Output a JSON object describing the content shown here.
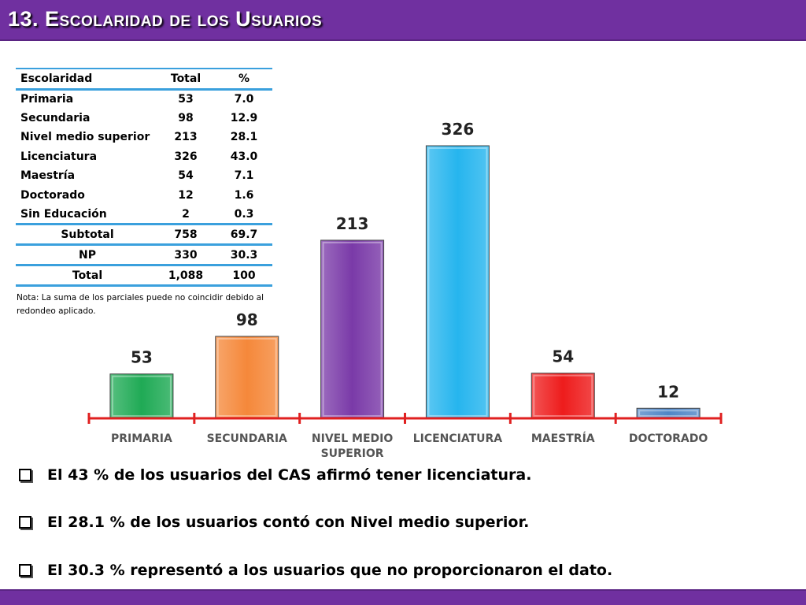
{
  "title": "13. Escolaridad de los Usuarios",
  "table": {
    "headers": [
      "Escolaridad",
      "Total",
      "%"
    ],
    "rows": [
      [
        "Primaria",
        "53",
        "7.0"
      ],
      [
        "Secundaria",
        "98",
        "12.9"
      ],
      [
        "Nivel medio superior",
        "213",
        "28.1"
      ],
      [
        "Licenciatura",
        "326",
        "43.0"
      ],
      [
        "Maestría",
        "54",
        "7.1"
      ],
      [
        "Doctorado",
        "12",
        "1.6"
      ],
      [
        "Sin Educación",
        "2",
        "0.3"
      ]
    ],
    "subtotal": [
      "Subtotal",
      "758",
      "69.7"
    ],
    "np": [
      "NP",
      "330",
      "30.3"
    ],
    "total": [
      "Total",
      "1,088",
      "100"
    ],
    "note": "Nota: La suma de los parciales puede no coincidir debido al redondeo aplicado."
  },
  "chart_data": {
    "type": "bar",
    "categories": [
      "PRIMARIA",
      "SECUNDARIA",
      "NIVEL MEDIO\nSUPERIOR",
      "LICENCIATURA",
      "MAESTRÍA",
      "DOCTORADO"
    ],
    "values": [
      53,
      98,
      213,
      326,
      54,
      12
    ],
    "colors": [
      "#1faa55",
      "#f5883a",
      "#7a3aa8",
      "#26b5ee",
      "#ee1c1c",
      "#4f86c6"
    ],
    "axis_color": "#e02020",
    "title": "",
    "xlabel": "",
    "ylabel": "",
    "ylim": [
      0,
      330
    ],
    "grid": false,
    "legend": "none"
  },
  "bullets": [
    "El 43 % de los usuarios del CAS afirmó tener licenciatura.",
    "El 28.1 % de los usuarios contó con Nivel medio superior.",
    "El 30.3 % representó a los usuarios que no proporcionaron el dato."
  ]
}
